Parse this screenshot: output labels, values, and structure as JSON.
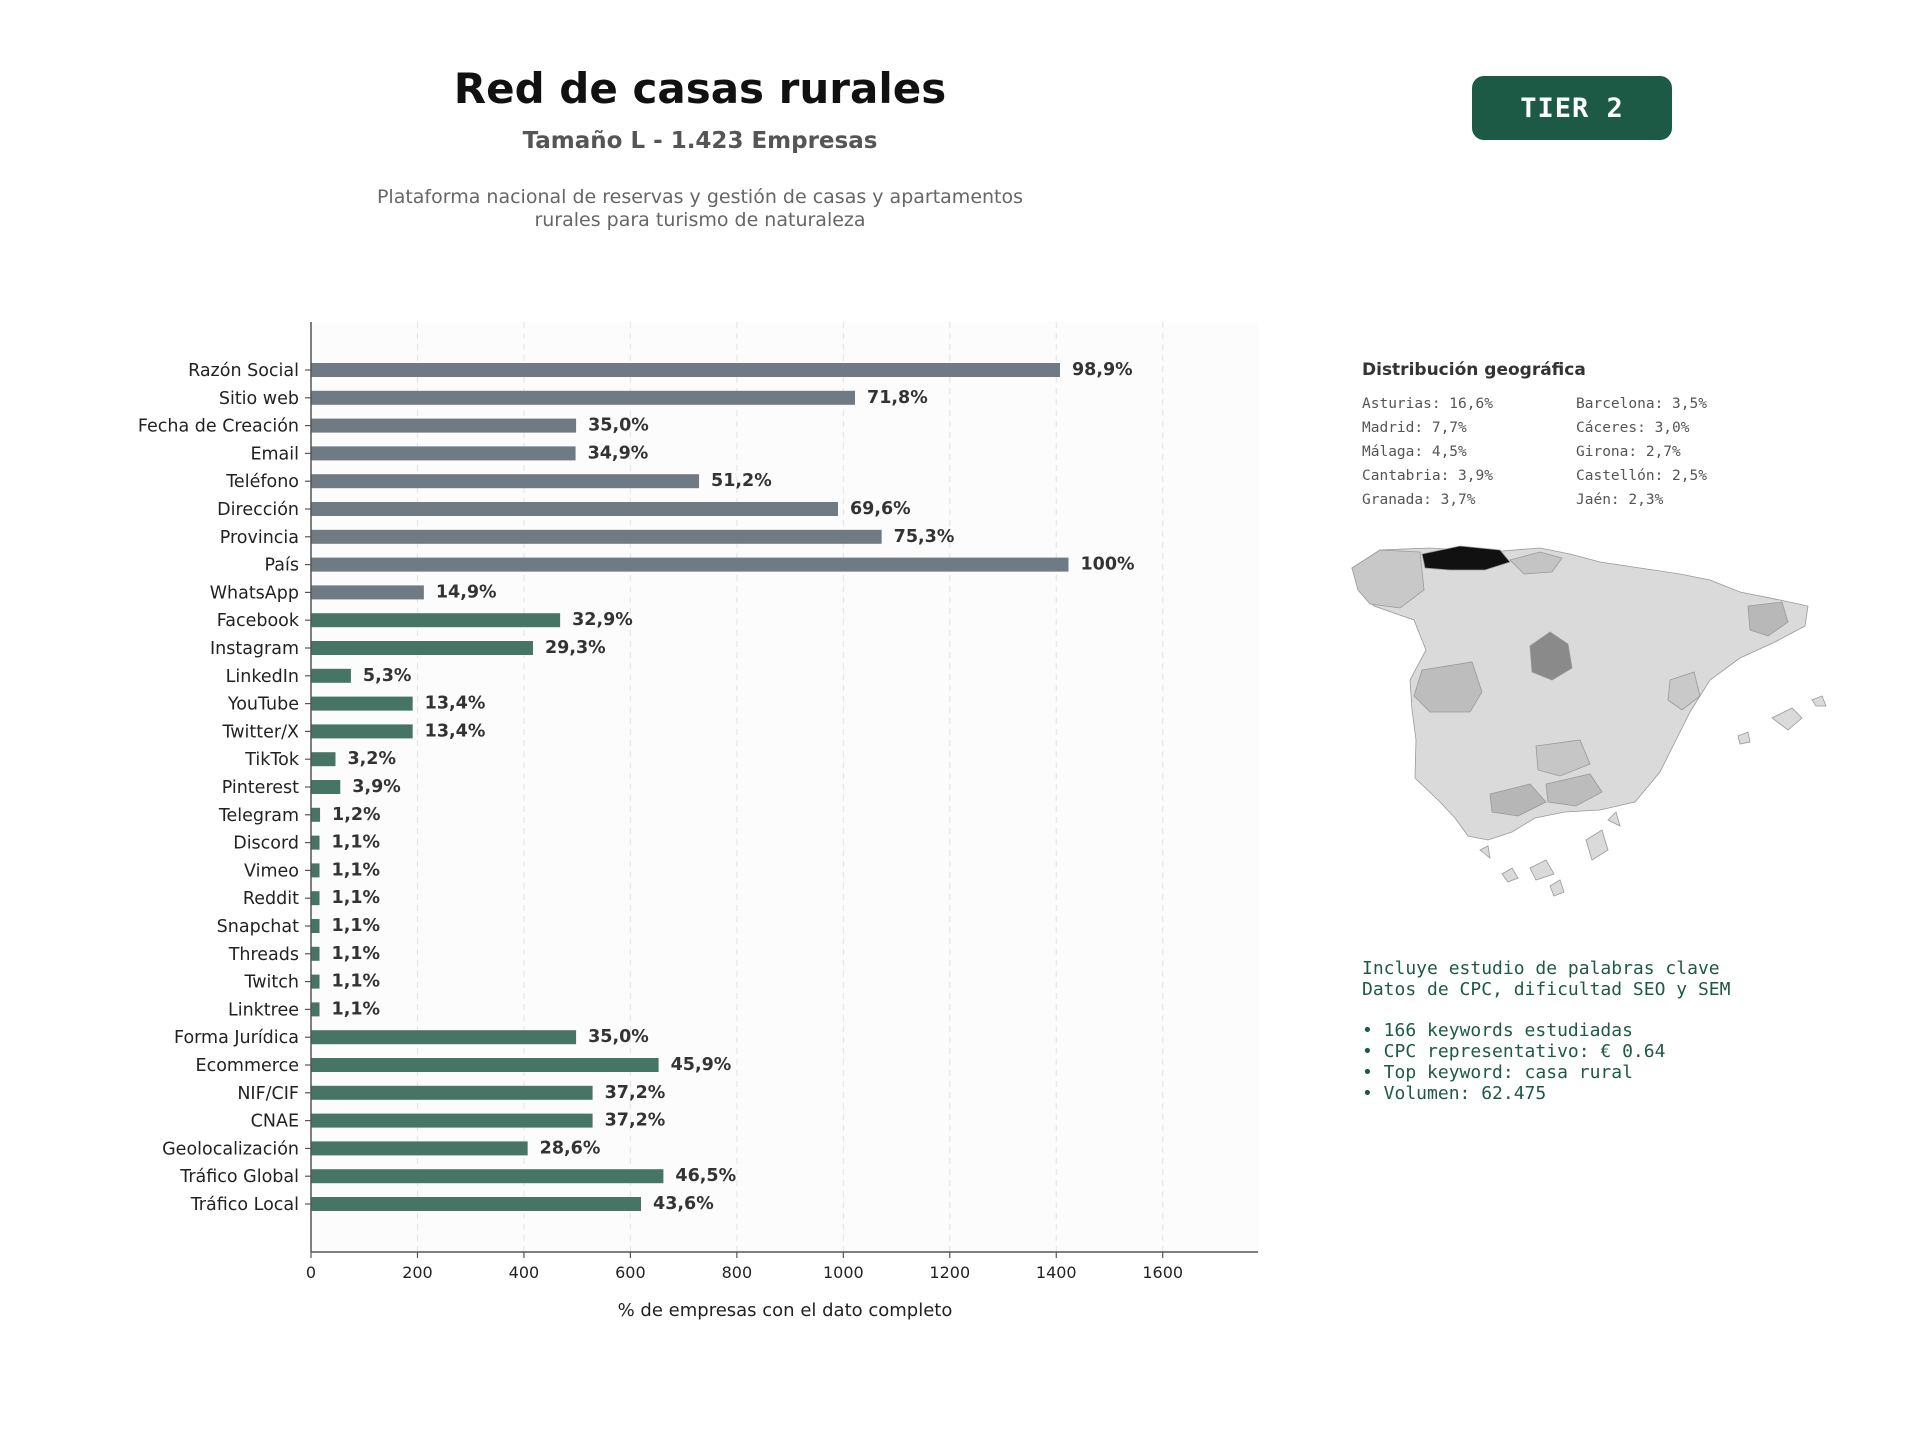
{
  "header": {
    "title": "Red de casas rurales",
    "subtitle": "Tamaño L - 1.423 Empresas",
    "description_line1": "Plataforma nacional de reservas y gestión de casas y apartamentos",
    "description_line2": "rurales para turismo de naturaleza",
    "tier_badge": "TIER 2"
  },
  "colors": {
    "gray_bar": "#6f7a82",
    "green_bar": "#477565",
    "badge": "#1d5a45",
    "plot_bg": "#fcfcfc"
  },
  "chart_data": {
    "type": "bar",
    "orientation": "horizontal",
    "xlabel": "% de empresas con el dato completo",
    "xlim": [
      0,
      1779
    ],
    "xticks": [
      0,
      200,
      400,
      600,
      800,
      1000,
      1200,
      1400,
      1600
    ],
    "grid": "vertical dashed",
    "bars": [
      {
        "label": "Razón Social",
        "value": 1407,
        "pct": "98,9%",
        "group": "gray"
      },
      {
        "label": "Sitio web",
        "value": 1022,
        "pct": "71,8%",
        "group": "gray"
      },
      {
        "label": "Fecha de Creación",
        "value": 498,
        "pct": "35,0%",
        "group": "gray"
      },
      {
        "label": "Email",
        "value": 497,
        "pct": "34,9%",
        "group": "gray"
      },
      {
        "label": "Teléfono",
        "value": 729,
        "pct": "51,2%",
        "group": "gray"
      },
      {
        "label": "Dirección",
        "value": 990,
        "pct": "69,6%",
        "group": "gray"
      },
      {
        "label": "Provincia",
        "value": 1072,
        "pct": "75,3%",
        "group": "gray"
      },
      {
        "label": "País",
        "value": 1423,
        "pct": "100%",
        "group": "gray"
      },
      {
        "label": "WhatsApp",
        "value": 212,
        "pct": "14,9%",
        "group": "gray"
      },
      {
        "label": "Facebook",
        "value": 468,
        "pct": "32,9%",
        "group": "green"
      },
      {
        "label": "Instagram",
        "value": 417,
        "pct": "29,3%",
        "group": "green"
      },
      {
        "label": "LinkedIn",
        "value": 75,
        "pct": "5,3%",
        "group": "green"
      },
      {
        "label": "YouTube",
        "value": 191,
        "pct": "13,4%",
        "group": "green"
      },
      {
        "label": "Twitter/X",
        "value": 191,
        "pct": "13,4%",
        "group": "green"
      },
      {
        "label": "TikTok",
        "value": 46,
        "pct": "3,2%",
        "group": "green"
      },
      {
        "label": "Pinterest",
        "value": 55,
        "pct": "3,9%",
        "group": "green"
      },
      {
        "label": "Telegram",
        "value": 17,
        "pct": "1,2%",
        "group": "green"
      },
      {
        "label": "Discord",
        "value": 16,
        "pct": "1,1%",
        "group": "green"
      },
      {
        "label": "Vimeo",
        "value": 16,
        "pct": "1,1%",
        "group": "green"
      },
      {
        "label": "Reddit",
        "value": 16,
        "pct": "1,1%",
        "group": "green"
      },
      {
        "label": "Snapchat",
        "value": 16,
        "pct": "1,1%",
        "group": "green"
      },
      {
        "label": "Threads",
        "value": 16,
        "pct": "1,1%",
        "group": "green"
      },
      {
        "label": "Twitch",
        "value": 16,
        "pct": "1,1%",
        "group": "green"
      },
      {
        "label": "Linktree",
        "value": 16,
        "pct": "1,1%",
        "group": "green"
      },
      {
        "label": "Forma Jurídica",
        "value": 498,
        "pct": "35,0%",
        "group": "green"
      },
      {
        "label": "Ecommerce",
        "value": 653,
        "pct": "45,9%",
        "group": "green"
      },
      {
        "label": "NIF/CIF",
        "value": 529,
        "pct": "37,2%",
        "group": "green"
      },
      {
        "label": "CNAE",
        "value": 529,
        "pct": "37,2%",
        "group": "green"
      },
      {
        "label": "Geolocalización",
        "value": 407,
        "pct": "28,6%",
        "group": "green"
      },
      {
        "label": "Tráfico Global",
        "value": 662,
        "pct": "46,5%",
        "group": "green"
      },
      {
        "label": "Tráfico Local",
        "value": 620,
        "pct": "43,6%",
        "group": "green"
      }
    ]
  },
  "geo": {
    "title": "Distribución geográfica",
    "items": [
      "Asturias: 16,6%",
      "Barcelona: 3,5%",
      "Madrid: 7,7%",
      "Cáceres: 3,0%",
      "Málaga: 4,5%",
      "Girona: 2,7%",
      "Cantabria: 3,9%",
      "Castellón: 2,5%",
      "Granada: 3,7%",
      "Jaén: 2,3%"
    ]
  },
  "keywords": {
    "line1": "Incluye estudio de palabras clave",
    "line2": "Datos de CPC, dificultad SEO y SEM",
    "bullets": [
      "• 166 keywords estudiadas",
      "• CPC representativo: € 0.64",
      "• Top keyword: casa rural",
      "• Volumen: 62.475"
    ]
  }
}
